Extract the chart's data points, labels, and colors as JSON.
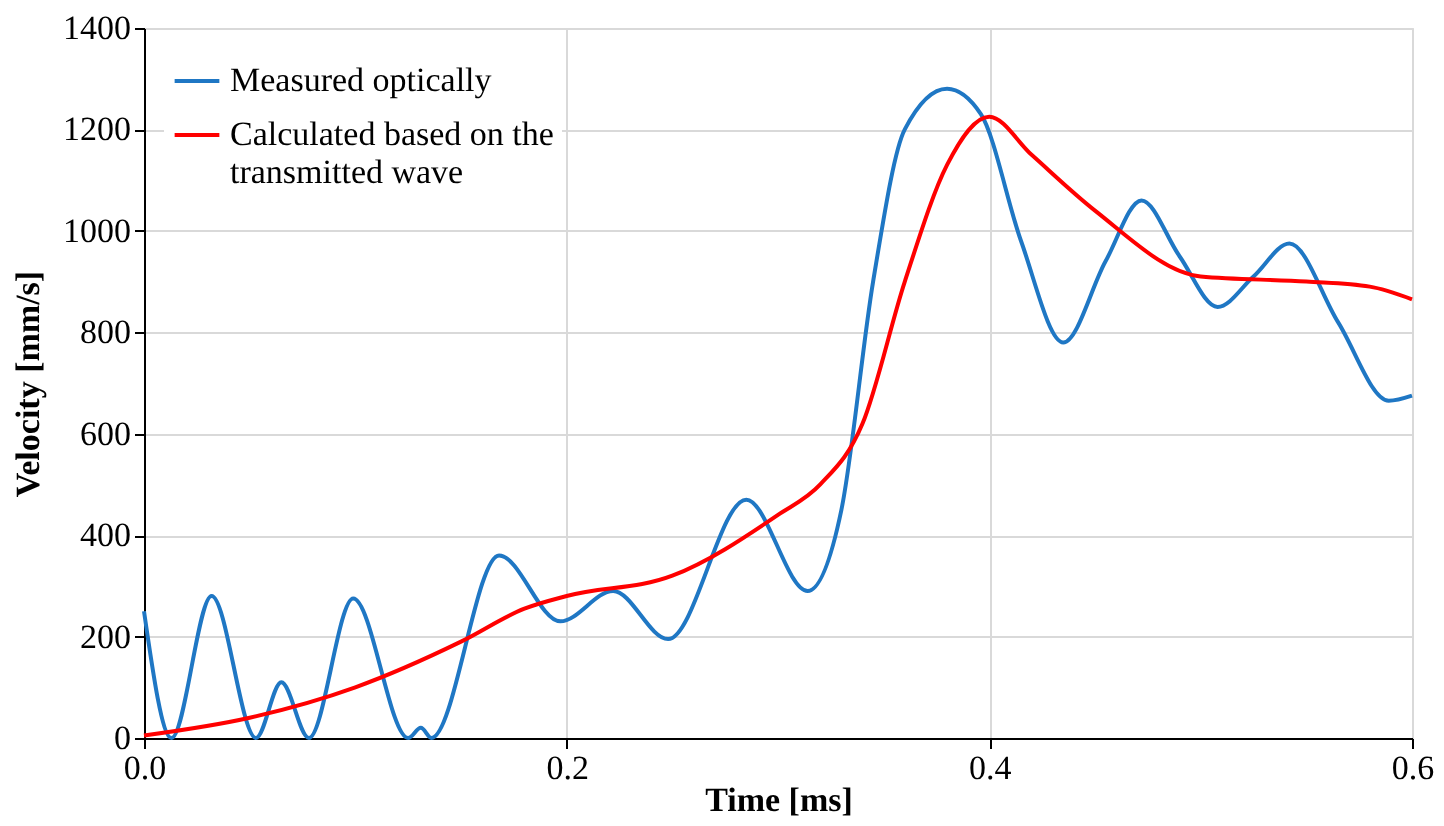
{
  "chart_data": {
    "type": "line",
    "xlabel": "Time [ms]",
    "ylabel": "Velocity [mm/s]",
    "xlim": [
      0,
      0.6
    ],
    "xticks": [
      {
        "value": 0,
        "label": "0.0"
      },
      0.2,
      0.4,
      0.6
    ],
    "ylim": [
      0,
      1400
    ],
    "yticks": [
      0,
      200,
      400,
      600,
      800,
      1000,
      1200,
      1400
    ],
    "grid": true,
    "legend": "top left",
    "line_style": "solid",
    "marker": "none",
    "series": [
      {
        "name": "Measured optically",
        "color": "#1f77c4",
        "x": [
          0,
          0.013,
          0.032,
          0.053,
          0.065,
          0.078,
          0.099,
          0.125,
          0.131,
          0.136,
          0.168,
          0.197,
          0.222,
          0.248,
          0.285,
          0.314,
          0.33,
          0.345,
          0.36,
          0.38,
          0.396,
          0.415,
          0.435,
          0.455,
          0.472,
          0.49,
          0.508,
          0.525,
          0.542,
          0.565,
          0.589,
          0.6
        ],
        "values": [
          250,
          0,
          280,
          0,
          110,
          0,
          275,
          0,
          20,
          0,
          360,
          230,
          290,
          195,
          470,
          290,
          450,
          900,
          1200,
          1280,
          1230,
          980,
          780,
          940,
          1060,
          950,
          850,
          910,
          975,
          820,
          665,
          675
        ]
      },
      {
        "name": "Calculated based on the transmitted wave",
        "color": "#ff0000",
        "x": [
          0,
          0.05,
          0.1,
          0.15,
          0.18,
          0.2,
          0.25,
          0.3,
          0.32,
          0.34,
          0.36,
          0.38,
          0.4,
          0.42,
          0.45,
          0.5,
          0.55,
          0.58,
          0.6
        ],
        "values": [
          5,
          40,
          100,
          190,
          255,
          280,
          320,
          440,
          500,
          620,
          900,
          1130,
          1225,
          1150,
          1040,
          910,
          900,
          890,
          865
        ]
      }
    ]
  }
}
